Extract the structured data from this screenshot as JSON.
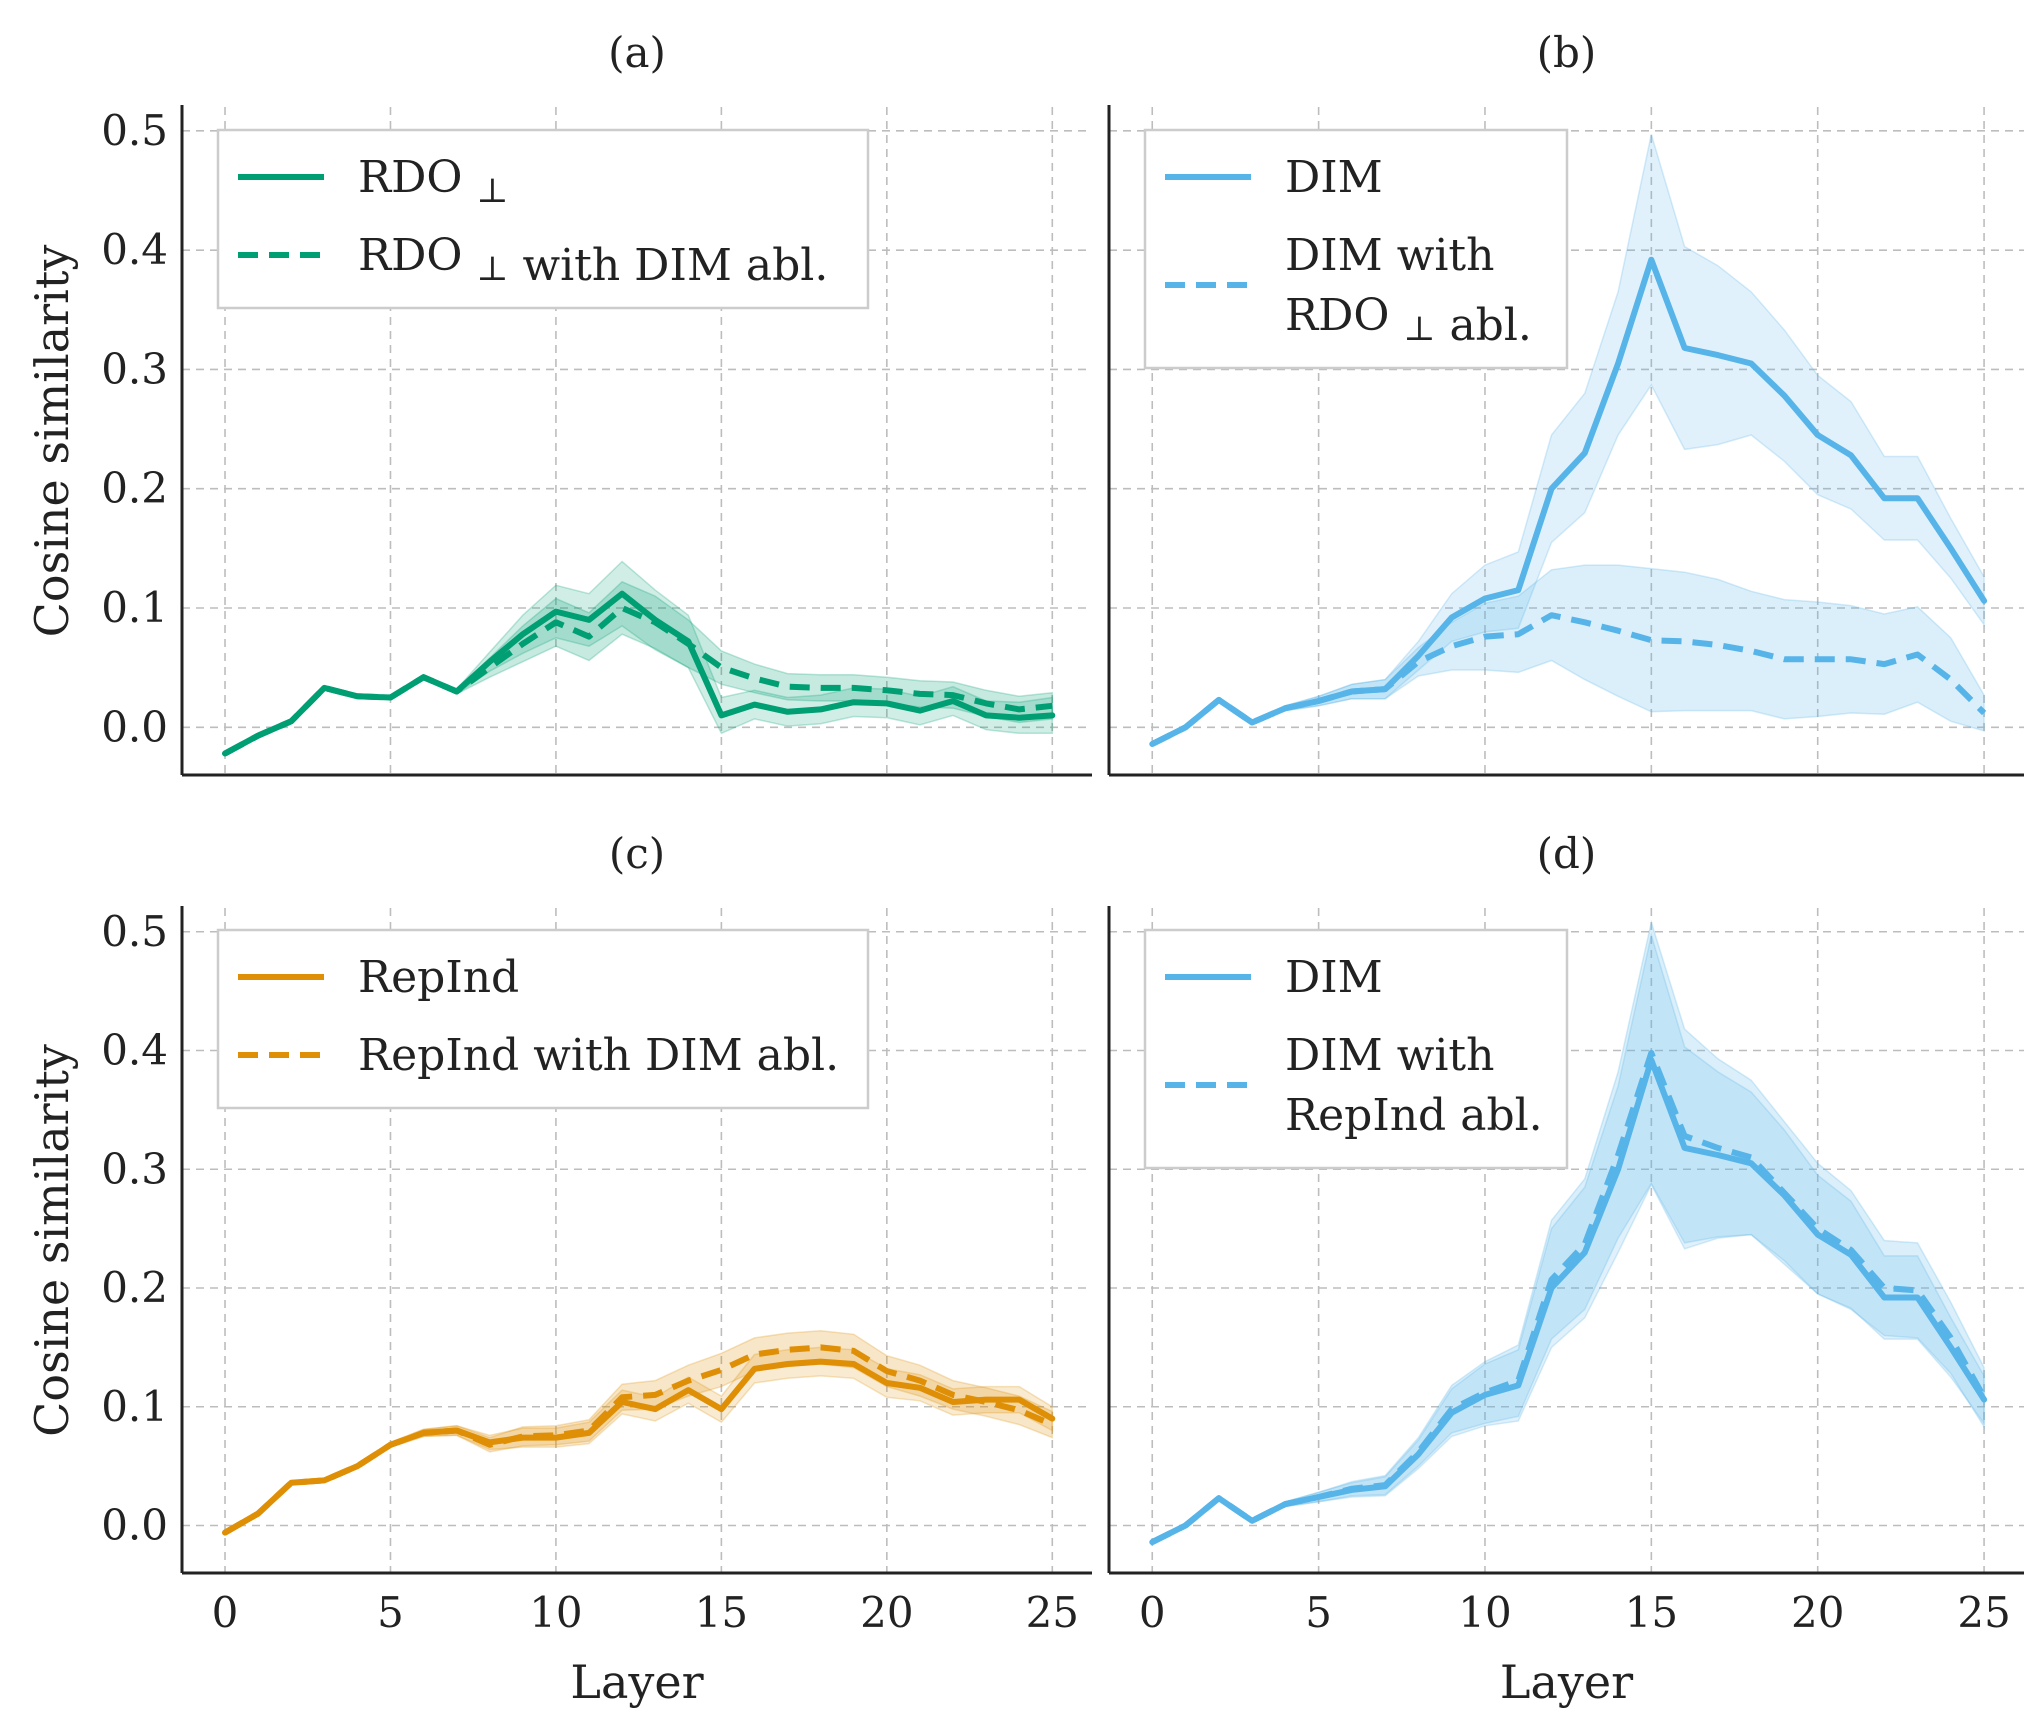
{
  "chart_data": [
    {
      "type": "line",
      "panel": "a",
      "title": "(a)",
      "xlabel": "",
      "ylabel": "Cosine similarity",
      "xlim": [
        -1.3,
        26.2
      ],
      "ylim": [
        -0.04,
        0.52
      ],
      "xticks": [
        0,
        5,
        10,
        15,
        20,
        25
      ],
      "xtick_labels": [
        "",
        "",
        "",
        "",
        "",
        ""
      ],
      "yticks": [
        0.0,
        0.1,
        0.2,
        0.3,
        0.4,
        0.5
      ],
      "ytick_labels": [
        "0.0",
        "0.1",
        "0.2",
        "0.3",
        "0.4",
        "0.5"
      ],
      "grid": true,
      "legend_position": "top-left",
      "x": [
        0,
        1,
        2,
        3,
        4,
        5,
        6,
        7,
        8,
        9,
        10,
        11,
        12,
        13,
        14,
        15,
        16,
        17,
        18,
        19,
        20,
        21,
        22,
        23,
        24,
        25
      ],
      "series": [
        {
          "name": "RDO ⊥",
          "legend_lines": [
            "RDO ⊥"
          ],
          "color": "#009e73",
          "style": "solid",
          "values": [
            -0.022,
            -0.007,
            0.005,
            0.033,
            0.026,
            0.025,
            0.042,
            0.03,
            0.055,
            0.078,
            0.097,
            0.09,
            0.112,
            0.09,
            0.072,
            0.01,
            0.019,
            0.013,
            0.015,
            0.021,
            0.02,
            0.014,
            0.022,
            0.01,
            0.008,
            0.01
          ],
          "band": [
            0.0,
            0.0,
            0.0,
            0.0,
            0.0,
            0.0,
            0.002,
            0.002,
            0.008,
            0.016,
            0.022,
            0.022,
            0.027,
            0.025,
            0.022,
            0.015,
            0.012,
            0.012,
            0.012,
            0.012,
            0.012,
            0.012,
            0.012,
            0.012,
            0.013,
            0.015
          ]
        },
        {
          "name": "RDO ⊥ with DIM abl.",
          "legend_lines": [
            "RDO ⊥ with DIM abl."
          ],
          "color": "#009e73",
          "style": "dashed",
          "values": [
            -0.022,
            -0.007,
            0.005,
            0.033,
            0.026,
            0.025,
            0.042,
            0.03,
            0.05,
            0.07,
            0.088,
            0.076,
            0.1,
            0.088,
            0.07,
            0.05,
            0.041,
            0.034,
            0.033,
            0.033,
            0.031,
            0.028,
            0.027,
            0.02,
            0.015,
            0.018
          ],
          "band": [
            0.0,
            0.0,
            0.0,
            0.0,
            0.0,
            0.0,
            0.002,
            0.002,
            0.008,
            0.015,
            0.02,
            0.02,
            0.022,
            0.022,
            0.02,
            0.014,
            0.012,
            0.011,
            0.011,
            0.011,
            0.011,
            0.011,
            0.011,
            0.011,
            0.011,
            0.011
          ]
        }
      ]
    },
    {
      "type": "line",
      "panel": "b",
      "title": "(b)",
      "xlabel": "",
      "ylabel": "",
      "xlim": [
        -1.3,
        26.2
      ],
      "ylim": [
        -0.04,
        0.52
      ],
      "xticks": [
        0,
        5,
        10,
        15,
        20,
        25
      ],
      "xtick_labels": [
        "",
        "",
        "",
        "",
        "",
        ""
      ],
      "yticks": [
        0.0,
        0.1,
        0.2,
        0.3,
        0.4,
        0.5
      ],
      "ytick_labels": [
        "",
        "",
        "",
        "",
        "",
        ""
      ],
      "grid": true,
      "legend_position": "top-left",
      "x": [
        0,
        1,
        2,
        3,
        4,
        5,
        6,
        7,
        8,
        9,
        10,
        11,
        12,
        13,
        14,
        15,
        16,
        17,
        18,
        19,
        20,
        21,
        22,
        23,
        24,
        25
      ],
      "series": [
        {
          "name": "DIM",
          "legend_lines": [
            "DIM"
          ],
          "color": "#56b4e9",
          "style": "solid",
          "values": [
            -0.014,
            0.0,
            0.023,
            0.004,
            0.016,
            0.022,
            0.03,
            0.032,
            0.06,
            0.092,
            0.108,
            0.115,
            0.2,
            0.23,
            0.305,
            0.392,
            0.318,
            0.312,
            0.305,
            0.278,
            0.245,
            0.228,
            0.192,
            0.192,
            0.15,
            0.106
          ],
          "band": [
            0.0,
            0.0,
            0.0,
            0.0,
            0.002,
            0.004,
            0.006,
            0.008,
            0.012,
            0.02,
            0.028,
            0.032,
            0.045,
            0.05,
            0.06,
            0.105,
            0.085,
            0.075,
            0.06,
            0.055,
            0.05,
            0.045,
            0.035,
            0.035,
            0.025,
            0.02
          ]
        },
        {
          "name": "DIM with RDO ⊥ abl.",
          "legend_lines": [
            "DIM with",
            "RDO ⊥ abl."
          ],
          "color": "#56b4e9",
          "style": "dashed",
          "values": [
            -0.014,
            0.0,
            0.023,
            0.004,
            0.016,
            0.022,
            0.03,
            0.032,
            0.055,
            0.068,
            0.076,
            0.078,
            0.094,
            0.088,
            0.081,
            0.073,
            0.072,
            0.069,
            0.064,
            0.057,
            0.057,
            0.057,
            0.053,
            0.061,
            0.04,
            0.012
          ],
          "band": [
            0.0,
            0.0,
            0.0,
            0.0,
            0.002,
            0.004,
            0.006,
            0.008,
            0.012,
            0.02,
            0.028,
            0.032,
            0.038,
            0.048,
            0.055,
            0.06,
            0.058,
            0.055,
            0.05,
            0.05,
            0.048,
            0.045,
            0.042,
            0.04,
            0.035,
            0.015
          ]
        }
      ]
    },
    {
      "type": "line",
      "panel": "c",
      "title": "(c)",
      "xlabel": "Layer",
      "ylabel": "Cosine similarity",
      "xlim": [
        -1.3,
        26.2
      ],
      "ylim": [
        -0.04,
        0.52
      ],
      "xticks": [
        0,
        5,
        10,
        15,
        20,
        25
      ],
      "xtick_labels": [
        "0",
        "5",
        "10",
        "15",
        "20",
        "25"
      ],
      "yticks": [
        0.0,
        0.1,
        0.2,
        0.3,
        0.4,
        0.5
      ],
      "ytick_labels": [
        "0.0",
        "0.1",
        "0.2",
        "0.3",
        "0.4",
        "0.5"
      ],
      "grid": true,
      "legend_position": "top-left",
      "x": [
        0,
        1,
        2,
        3,
        4,
        5,
        6,
        7,
        8,
        9,
        10,
        11,
        12,
        13,
        14,
        15,
        16,
        17,
        18,
        19,
        20,
        21,
        22,
        23,
        24,
        25
      ],
      "series": [
        {
          "name": "RepInd",
          "legend_lines": [
            "RepInd"
          ],
          "color": "#de8f05",
          "style": "solid",
          "values": [
            -0.006,
            0.01,
            0.036,
            0.038,
            0.05,
            0.068,
            0.078,
            0.08,
            0.07,
            0.074,
            0.074,
            0.078,
            0.104,
            0.098,
            0.114,
            0.098,
            0.132,
            0.136,
            0.138,
            0.136,
            0.12,
            0.116,
            0.104,
            0.106,
            0.106,
            0.09
          ],
          "band": [
            0.0,
            0.0,
            0.0,
            0.0,
            0.0,
            0.002,
            0.003,
            0.004,
            0.006,
            0.008,
            0.008,
            0.009,
            0.01,
            0.01,
            0.011,
            0.011,
            0.012,
            0.012,
            0.012,
            0.012,
            0.012,
            0.011,
            0.011,
            0.011,
            0.011,
            0.01
          ]
        },
        {
          "name": "RepInd with DIM abl.",
          "legend_lines": [
            "RepInd with DIM abl."
          ],
          "color": "#de8f05",
          "style": "dashed",
          "values": [
            -0.006,
            0.01,
            0.036,
            0.038,
            0.05,
            0.068,
            0.078,
            0.08,
            0.068,
            0.075,
            0.076,
            0.08,
            0.108,
            0.11,
            0.122,
            0.131,
            0.144,
            0.148,
            0.15,
            0.147,
            0.13,
            0.122,
            0.11,
            0.104,
            0.097,
            0.085
          ],
          "band": [
            0.0,
            0.0,
            0.0,
            0.0,
            0.0,
            0.002,
            0.003,
            0.004,
            0.006,
            0.008,
            0.008,
            0.009,
            0.011,
            0.012,
            0.013,
            0.014,
            0.014,
            0.014,
            0.014,
            0.014,
            0.013,
            0.013,
            0.012,
            0.012,
            0.012,
            0.011
          ]
        }
      ]
    },
    {
      "type": "line",
      "panel": "d",
      "title": "(d)",
      "xlabel": "Layer",
      "ylabel": "",
      "xlim": [
        -1.3,
        26.2
      ],
      "ylim": [
        -0.04,
        0.52
      ],
      "xticks": [
        0,
        5,
        10,
        15,
        20,
        25
      ],
      "xtick_labels": [
        "0",
        "5",
        "10",
        "15",
        "20",
        "25"
      ],
      "yticks": [
        0.0,
        0.1,
        0.2,
        0.3,
        0.4,
        0.5
      ],
      "ytick_labels": [
        "",
        "",
        "",
        "",
        "",
        ""
      ],
      "grid": true,
      "legend_position": "top-left",
      "x": [
        0,
        1,
        2,
        3,
        4,
        5,
        6,
        7,
        8,
        9,
        10,
        11,
        12,
        13,
        14,
        15,
        16,
        17,
        18,
        19,
        20,
        21,
        22,
        23,
        24,
        25
      ],
      "series": [
        {
          "name": "DIM",
          "legend_lines": [
            "DIM"
          ],
          "color": "#56b4e9",
          "style": "solid",
          "values": [
            -0.014,
            0.0,
            0.023,
            0.004,
            0.018,
            0.024,
            0.03,
            0.033,
            0.06,
            0.095,
            0.11,
            0.118,
            0.2,
            0.23,
            0.3,
            0.392,
            0.318,
            0.312,
            0.305,
            0.278,
            0.245,
            0.228,
            0.192,
            0.192,
            0.15,
            0.106
          ],
          "band": [
            0.0,
            0.0,
            0.0,
            0.0,
            0.002,
            0.004,
            0.006,
            0.008,
            0.012,
            0.02,
            0.026,
            0.03,
            0.05,
            0.055,
            0.07,
            0.105,
            0.085,
            0.07,
            0.06,
            0.055,
            0.05,
            0.045,
            0.035,
            0.035,
            0.025,
            0.02
          ]
        },
        {
          "name": "DIM with RepInd abl.",
          "legend_lines": [
            "DIM with",
            "RepInd abl."
          ],
          "color": "#56b4e9",
          "style": "dashed",
          "values": [
            -0.014,
            0.0,
            0.023,
            0.004,
            0.018,
            0.024,
            0.031,
            0.034,
            0.062,
            0.098,
            0.112,
            0.122,
            0.207,
            0.237,
            0.312,
            0.398,
            0.328,
            0.318,
            0.31,
            0.28,
            0.25,
            0.232,
            0.2,
            0.198,
            0.158,
            0.108
          ],
          "band": [
            0.0,
            0.0,
            0.0,
            0.0,
            0.002,
            0.004,
            0.006,
            0.008,
            0.012,
            0.02,
            0.026,
            0.03,
            0.05,
            0.055,
            0.07,
            0.11,
            0.09,
            0.075,
            0.065,
            0.06,
            0.055,
            0.05,
            0.04,
            0.04,
            0.03,
            0.025
          ]
        }
      ]
    }
  ]
}
